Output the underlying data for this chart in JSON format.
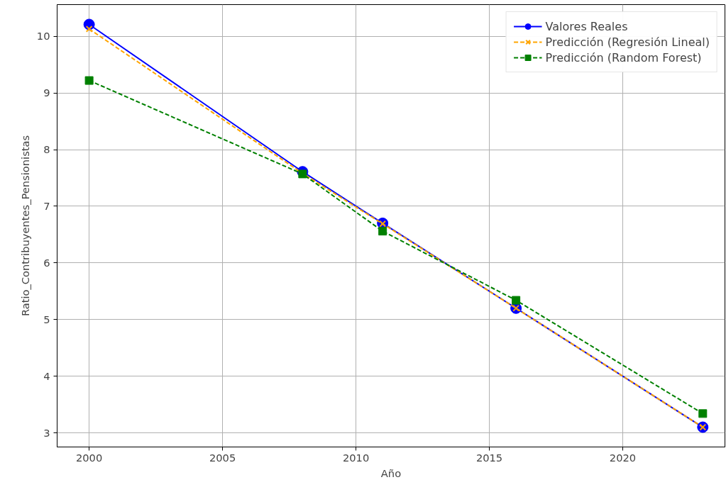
{
  "chart_data": {
    "type": "line",
    "xlabel": "Año",
    "ylabel": "Ratio_Contribuyentes_Pensionistas",
    "x": [
      2000,
      2008,
      2011,
      2016,
      2023
    ],
    "series": [
      {
        "name": "Valores Reales",
        "color": "#0000ff",
        "values": [
          10.21,
          7.61,
          6.7,
          5.2,
          3.1
        ],
        "marker": "circle",
        "line_style": "solid"
      },
      {
        "name": "Predicción (Regresión Lineal)",
        "color": "#ffa500",
        "values": [
          10.13,
          7.58,
          6.69,
          5.2,
          3.1
        ],
        "marker": "cross",
        "line_style": "dashed"
      },
      {
        "name": "Predicción (Random Forest)",
        "color": "#008000",
        "values": [
          9.22,
          7.57,
          6.56,
          5.34,
          3.34
        ],
        "marker": "square",
        "line_style": "dashed"
      }
    ],
    "xlim": [
      1998.8,
      2023.83
    ],
    "ylim": [
      2.75,
      10.56
    ],
    "xticks": [
      2000,
      2005,
      2010,
      2015,
      2020
    ],
    "yticks": [
      3,
      4,
      5,
      6,
      7,
      8,
      9,
      10
    ],
    "grid": true,
    "legend": "top right"
  }
}
